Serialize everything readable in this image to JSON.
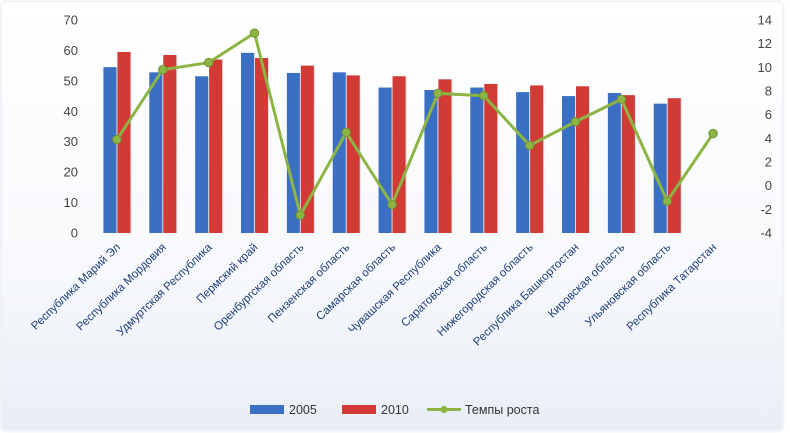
{
  "chart_data": {
    "type": "bar",
    "categories": [
      "Республика Марий Эл",
      "Республика Мордовия",
      "Удмуртская Республика",
      "Пермский край",
      "Оренбургская область",
      "Пензенская область",
      "Самарская область",
      "Чувашская Республика",
      "Саратовская область",
      "Нижегородская область",
      "Республика Башкортостан",
      "Кировская область",
      "Ульяновская область",
      "Республика Татарстан"
    ],
    "series": [
      {
        "name": "2005",
        "type": "bar",
        "axis": "left",
        "color": "#3a6fc4",
        "values": [
          54.5,
          52.8,
          51.5,
          59.2,
          52.6,
          52.8,
          47.8,
          47.0,
          47.8,
          46.3,
          45.0,
          46.0,
          42.5,
          null
        ]
      },
      {
        "name": "2010",
        "type": "bar",
        "axis": "left",
        "color": "#d23a36",
        "values": [
          59.5,
          58.5,
          57.0,
          57.5,
          55.0,
          51.8,
          51.5,
          50.5,
          49.0,
          48.5,
          48.2,
          45.3,
          44.3,
          null
        ]
      },
      {
        "name": "Темпы роста",
        "type": "line",
        "axis": "right",
        "color": "#8db544",
        "values": [
          3.9,
          9.8,
          10.4,
          12.9,
          -2.5,
          4.5,
          -1.6,
          7.8,
          7.6,
          3.4,
          5.4,
          7.3,
          -1.3,
          4.4
        ]
      }
    ],
    "y_left": {
      "min": 0,
      "max": 70,
      "ticks": [
        "0",
        "10",
        "20",
        "30",
        "40",
        "50",
        "60",
        "70"
      ]
    },
    "y_right": {
      "min": -4,
      "max": 14,
      "ticks": [
        "-4",
        "-2",
        "0",
        "2",
        "4",
        "6",
        "8",
        "10",
        "12",
        "14"
      ]
    },
    "legend": {
      "position": "bottom",
      "items": [
        "2005",
        "2010",
        "Темпы роста"
      ]
    },
    "gridlines": false
  }
}
